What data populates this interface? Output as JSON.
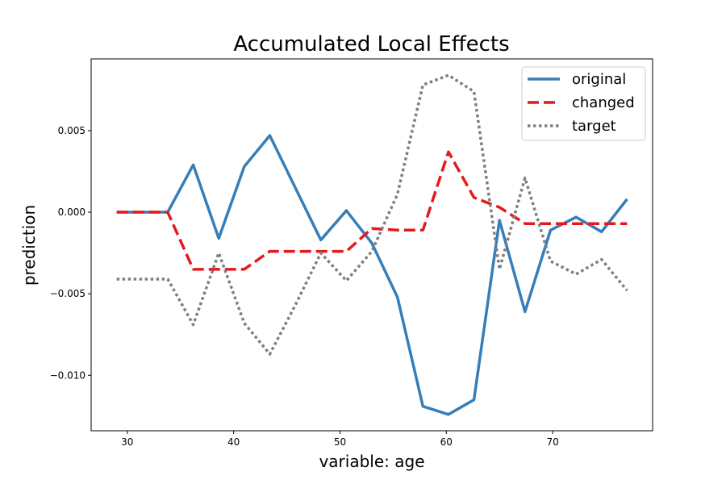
{
  "chart_data": {
    "type": "line",
    "title": "Accumulated Local Effects",
    "xlabel": "variable: age",
    "ylabel": "prediction",
    "xlim": [
      26.6,
      79.4
    ],
    "ylim": [
      -0.0134,
      0.0094
    ],
    "x_ticks": [
      30,
      40,
      50,
      60,
      70
    ],
    "x_tick_labels": [
      "30",
      "40",
      "50",
      "60",
      "70"
    ],
    "y_ticks": [
      -0.01,
      -0.005,
      0.0,
      0.005
    ],
    "y_tick_labels": [
      "−0.010",
      "−0.005",
      "0.000",
      "0.005"
    ],
    "grid": false,
    "legend": "top-right",
    "x": [
      29,
      31.4,
      33.8,
      36.2,
      38.6,
      41,
      43.4,
      45.8,
      48.2,
      50.6,
      53,
      55.4,
      57.8,
      60.2,
      62.6,
      65,
      67.4,
      69.8,
      72.2,
      74.6,
      77
    ],
    "series": [
      {
        "name": "original",
        "color": "#377eb8",
        "style": "solid",
        "values": [
          0.0,
          0.0,
          0.0,
          0.0029,
          -0.0016,
          0.0028,
          0.0047,
          0.0015,
          -0.0017,
          0.0001,
          -0.0019,
          -0.0052,
          -0.0119,
          -0.0124,
          -0.0115,
          -0.0005,
          -0.0061,
          -0.0011,
          -0.0003,
          -0.0012,
          0.0008
        ]
      },
      {
        "name": "changed",
        "color": "#e41a1c",
        "style": "dashed",
        "values": [
          0.0,
          0.0,
          0.0,
          -0.0035,
          -0.0035,
          -0.0035,
          -0.0024,
          -0.0024,
          -0.0024,
          -0.0024,
          -0.001,
          -0.0011,
          -0.0011,
          0.0037,
          0.0009,
          0.0003,
          -0.0007,
          -0.0007,
          -0.0007,
          -0.0007,
          -0.0007
        ]
      },
      {
        "name": "target",
        "color": "#7f7f7f",
        "style": "dotted",
        "values": [
          -0.0041,
          -0.0041,
          -0.0041,
          -0.0069,
          -0.0025,
          -0.0068,
          -0.0087,
          -0.0057,
          -0.0025,
          -0.0042,
          -0.0024,
          0.0011,
          0.0078,
          0.0084,
          0.0074,
          -0.0035,
          0.0021,
          -0.003,
          -0.0038,
          -0.0029,
          -0.0048
        ]
      }
    ]
  }
}
